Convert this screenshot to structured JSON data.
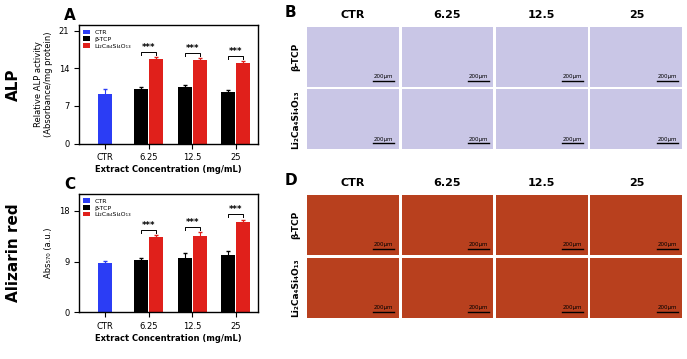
{
  "chart_data": [
    {
      "type": "bar",
      "panel": "A",
      "y_label": "Relative ALP activity\n(Absorbance/mg protein)",
      "x_label": "Extract Concentration (mg/mL)",
      "categories": [
        "CTR",
        "6.25",
        "12.5",
        "25"
      ],
      "series": [
        {
          "name": "CTR",
          "color": "#2b3df5",
          "values": [
            9.3,
            null,
            null,
            null
          ],
          "errors": [
            0.8,
            null,
            null,
            null
          ]
        },
        {
          "name": "β-TCP",
          "color": "#000000",
          "values": [
            null,
            10.2,
            10.6,
            9.6
          ],
          "errors": [
            null,
            0.3,
            0.3,
            0.3
          ]
        },
        {
          "name": "Li₂Ca₄Si₄O₁₃",
          "color": "#e0201b",
          "values": [
            null,
            15.8,
            15.6,
            15.0
          ],
          "errors": [
            null,
            0.3,
            0.3,
            0.3
          ]
        }
      ],
      "ylim": [
        0,
        22
      ],
      "yticks": [
        0,
        7,
        14,
        21
      ],
      "legend": "upper left",
      "annotations": [
        {
          "category": "6.25",
          "text": "***"
        },
        {
          "category": "12.5",
          "text": "***"
        },
        {
          "category": "25",
          "text": "***"
        }
      ]
    },
    {
      "type": "bar",
      "panel": "C",
      "y_label": "Abs₅₇₀ (a.u.)",
      "x_label": "Extract Concentration (mg/mL)",
      "categories": [
        "CTR",
        "6.25",
        "12.5",
        "25"
      ],
      "series": [
        {
          "name": "CTR",
          "color": "#2b3df5",
          "values": [
            8.7,
            null,
            null,
            null
          ],
          "errors": [
            0.4,
            null,
            null,
            null
          ]
        },
        {
          "name": "β-TCP",
          "color": "#000000",
          "values": [
            null,
            9.3,
            9.7,
            10.2
          ],
          "errors": [
            null,
            0.3,
            0.8,
            0.6
          ]
        },
        {
          "name": "Li₂Ca₄Si₄O₁₃",
          "color": "#e0201b",
          "values": [
            null,
            13.3,
            13.6,
            16.0
          ],
          "errors": [
            null,
            0.4,
            0.6,
            0.4
          ]
        }
      ],
      "ylim": [
        0,
        21
      ],
      "yticks": [
        0,
        9,
        18
      ],
      "legend": "upper left",
      "annotations": [
        {
          "category": "6.25",
          "text": "***"
        },
        {
          "category": "12.5",
          "text": "***"
        },
        {
          "category": "25",
          "text": "***"
        }
      ]
    }
  ],
  "row_labels": [
    "ALP",
    "Alizarin red"
  ],
  "image_grids": [
    {
      "panel": "B",
      "columns": [
        "CTR",
        "6.25",
        "12.5",
        "25"
      ],
      "rows": [
        "β-TCP",
        "Li₂Ca₄Si₄O₁₃"
      ],
      "scale_bar": "200μm",
      "color": "#c9c6e6"
    },
    {
      "panel": "D",
      "columns": [
        "CTR",
        "6.25",
        "12.5",
        "25"
      ],
      "rows": [
        "β-TCP",
        "Li₂Ca₄Si₄O₁₃"
      ],
      "scale_bar": "200μm",
      "color": "#b8401e"
    }
  ]
}
